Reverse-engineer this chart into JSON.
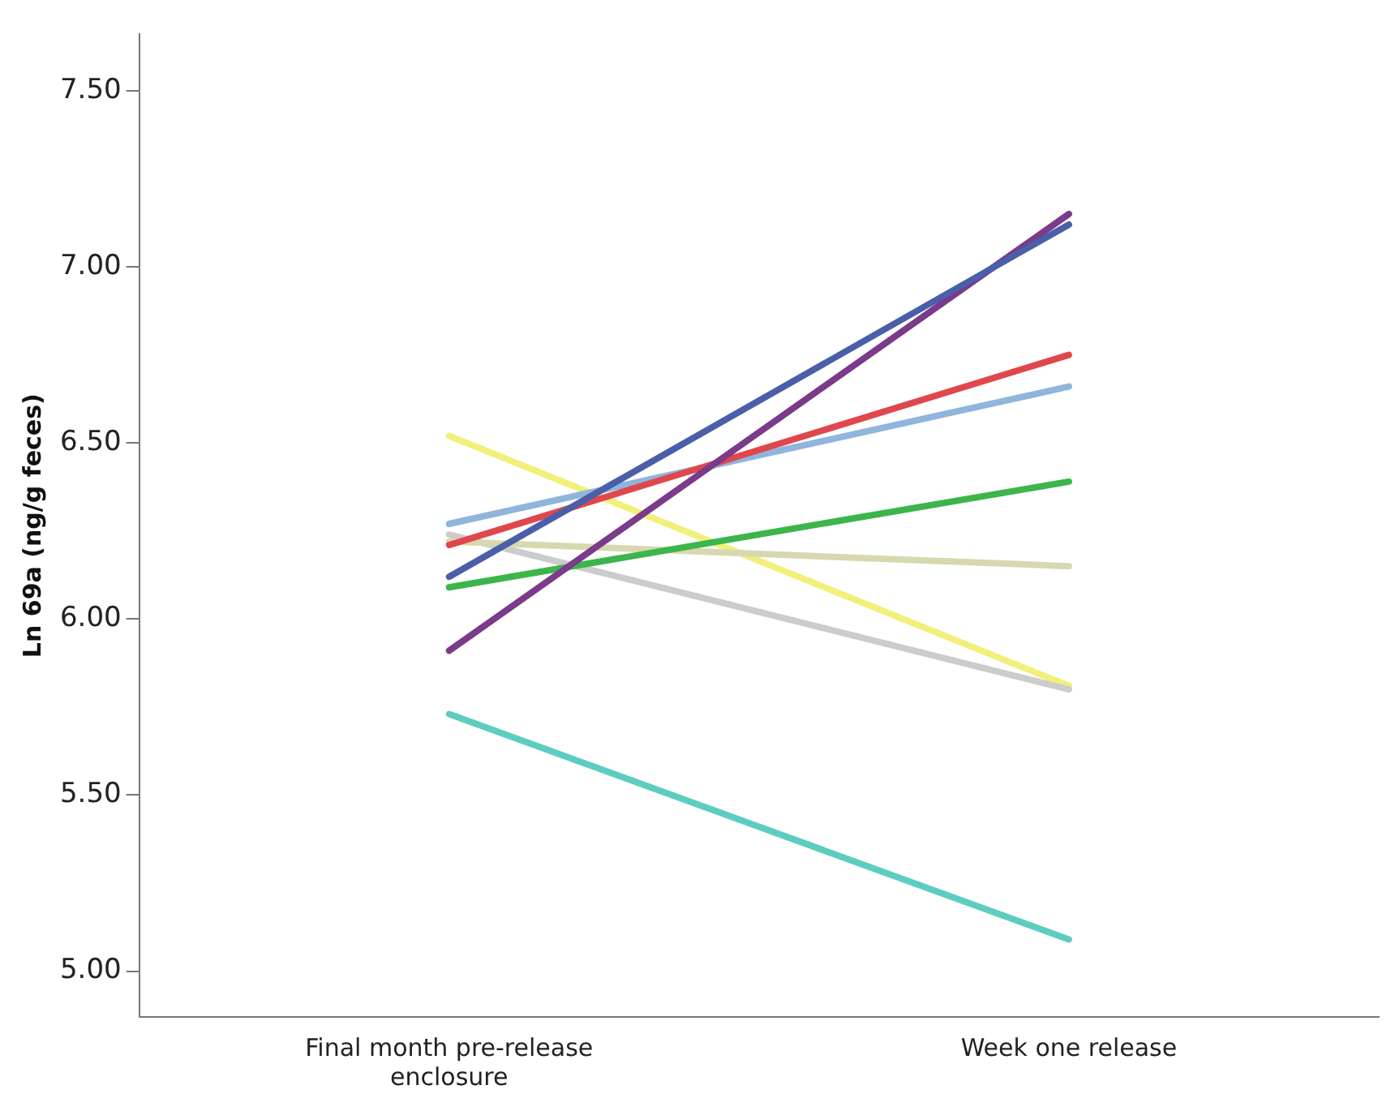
{
  "chart_data": {
    "type": "line",
    "ylabel": "Ln 69a (ng/g feces)",
    "categories": [
      "Final month pre-release enclosure",
      "Week one release"
    ],
    "series": [
      {
        "color": "#4a5fa8",
        "values": [
          6.12,
          7.12
        ]
      },
      {
        "color": "#7b3a8a",
        "values": [
          5.91,
          7.15
        ]
      },
      {
        "color": "#e0474c",
        "values": [
          6.21,
          6.75
        ]
      },
      {
        "color": "#8fb5dc",
        "values": [
          6.27,
          6.66
        ]
      },
      {
        "color": "#3cb54a",
        "values": [
          6.09,
          6.39
        ]
      },
      {
        "color": "#d8d8b0",
        "values": [
          6.22,
          6.15
        ]
      },
      {
        "color": "#cccccc",
        "values": [
          6.24,
          5.8
        ]
      },
      {
        "color": "#f0f07a",
        "values": [
          6.52,
          5.81
        ]
      },
      {
        "color": "#5ccdc0",
        "values": [
          5.73,
          5.09
        ]
      }
    ],
    "ylim": [
      4.87,
      7.66
    ],
    "yticks": [
      {
        "value": 5,
        "label": "5.00"
      },
      {
        "value": 5.5,
        "label": "5.50"
      },
      {
        "value": 6,
        "label": "6.00"
      },
      {
        "value": 6.5,
        "label": "6.50"
      },
      {
        "value": 7,
        "label": "7.00"
      },
      {
        "value": 7.5,
        "label": "7.50"
      }
    ],
    "grid": false,
    "legend": false,
    "marker": "none",
    "line_style": "solid"
  }
}
